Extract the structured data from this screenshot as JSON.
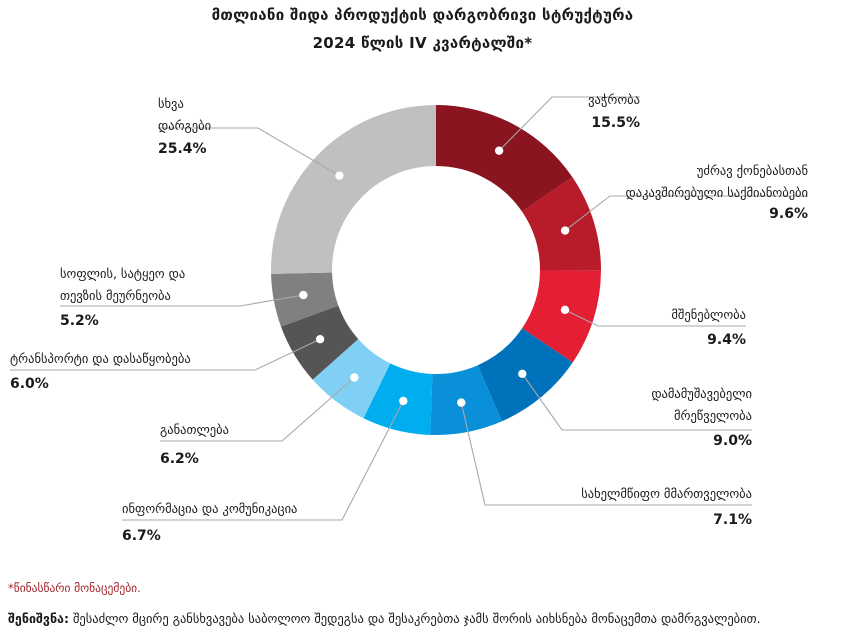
{
  "title_line1": "მთლიანი შიდა პროდუქტის დარგობრივი სტრუქტურა",
  "title_line2": "2024 წლის IV კვარტალში*",
  "chart_data": {
    "type": "pie",
    "donut": true,
    "slices": [
      {
        "label_lines": [
          "ვაჭრობა"
        ],
        "value": 15.5,
        "value_label": "15.5%",
        "color": "#8a1420"
      },
      {
        "label_lines": [
          "უძრავ ქონებასთან",
          "დაკავშირებული საქმიანობები"
        ],
        "value": 9.6,
        "value_label": "9.6%",
        "color": "#b81b2a"
      },
      {
        "label_lines": [
          "მშენებლობა"
        ],
        "value": 9.4,
        "value_label": "9.4%",
        "color": "#e41f33"
      },
      {
        "label_lines": [
          "დამამუშავებელი",
          "მრეწველობა"
        ],
        "value": 9.0,
        "value_label": "9.0%",
        "color": "#0072bc"
      },
      {
        "label_lines": [
          "სახელმწიფო მმართველობა"
        ],
        "value": 7.1,
        "value_label": "7.1%",
        "color": "#0a90d8"
      },
      {
        "label_lines": [
          "ინფორმაცია და კომუნიკაცია"
        ],
        "value": 6.7,
        "value_label": "6.7%",
        "color": "#00adef"
      },
      {
        "label_lines": [
          "განათლება"
        ],
        "value": 6.2,
        "value_label": "6.2%",
        "color": "#80d0f5"
      },
      {
        "label_lines": [
          "ტრანსპორტი და დასაწყობება"
        ],
        "value": 6.0,
        "value_label": "6.0%",
        "color": "#555555"
      },
      {
        "label_lines": [
          "სოფლის, სატყეო და",
          "თევზის მეურნეობა"
        ],
        "value": 5.2,
        "value_label": "5.2%",
        "color": "#808080"
      },
      {
        "label_lines": [
          "სხვა",
          "დარგები"
        ],
        "value": 25.4,
        "value_label": "25.4%",
        "color": "#c0c0c0"
      }
    ]
  },
  "footnote_preliminary": "*წინასწარი მონაცემები.",
  "note_label": "შენიშვნა:",
  "note_text": " შესაძლო მცირე განსხვავება საბოლოო შედეგსა და შესაკრებთა ჯამს შორის აიხსნება მონაცემთა დამრგვალებით."
}
